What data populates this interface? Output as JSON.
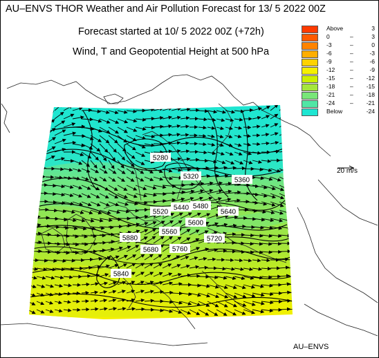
{
  "titles": {
    "main": "AU–ENVS THOR Weather and Air Pollution Forecast for 13/ 5 2022  00Z",
    "forecast_start": "Forecast started at 10/ 5 2022  00Z (+72h)",
    "fields": "Wind, T and Geopotential Height at 500 hPa"
  },
  "legend": [
    {
      "lo": "Above",
      "hi": "3",
      "color": "#ff3a00"
    },
    {
      "lo": "0",
      "hi": "3",
      "color": "#ff5a00"
    },
    {
      "lo": "-3",
      "hi": "0",
      "color": "#ff8400"
    },
    {
      "lo": "-6",
      "hi": "-3",
      "color": "#ffae00"
    },
    {
      "lo": "-9",
      "hi": "-6",
      "color": "#ffd200"
    },
    {
      "lo": "-12",
      "hi": "-9",
      "color": "#f5f000"
    },
    {
      "lo": "-15",
      "hi": "-12",
      "color": "#cdf000"
    },
    {
      "lo": "-18",
      "hi": "-15",
      "color": "#a5e63c"
    },
    {
      "lo": "-21",
      "hi": "-18",
      "color": "#78e678"
    },
    {
      "lo": "-24",
      "hi": "-21",
      "color": "#50e6a5"
    },
    {
      "lo": "Below",
      "hi": "-24",
      "color": "#1ee6d2"
    }
  ],
  "scale": {
    "label": "20 m/s"
  },
  "contour_labels": [
    "5280",
    "5320",
    "5360",
    "5440",
    "5480",
    "5520",
    "5560",
    "5600",
    "5640",
    "5680",
    "5720",
    "5760",
    "5840",
    "5880"
  ],
  "credit": "AU–ENVS"
}
